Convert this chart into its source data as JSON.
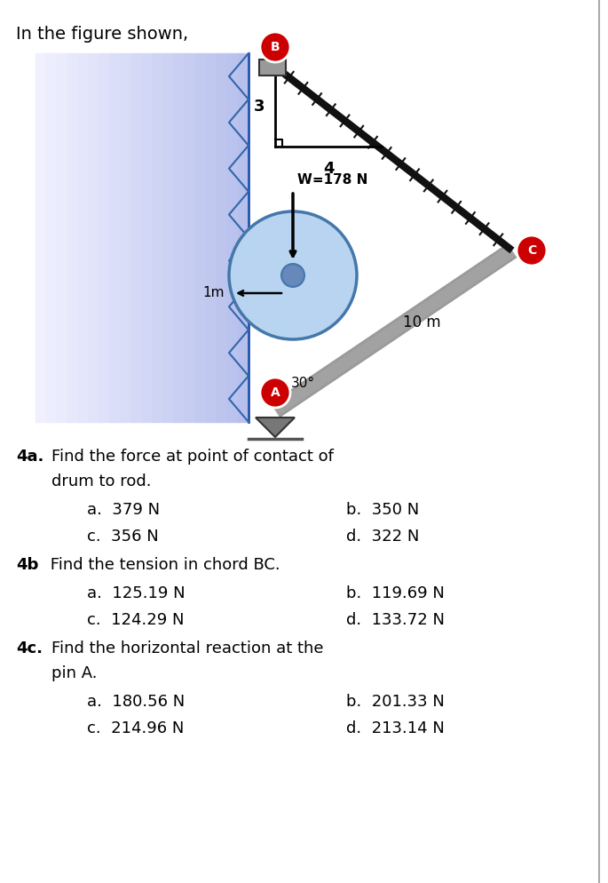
{
  "title": "In the figure shown,",
  "background_color": "#ffffff",
  "wall_color_light": "#c8dff0",
  "wall_color_dark": "#5599cc",
  "rod_color": "#888888",
  "chain_color": "#222222",
  "drum_color": "#b8d4f0",
  "drum_edge": "#4477aa",
  "point_color": "#cc0000",
  "q4a_label": "4a.",
  "q4a_text1": "Find the force at point of contact of",
  "q4a_text2": "drum to rod.",
  "q4a_a": "a.  379 N",
  "q4a_b": "b.  350 N",
  "q4a_c": "c.  356 N",
  "q4a_d": "d.  322 N",
  "q4b_label": "4b",
  "q4b_text": " Find the tension in chord BC.",
  "q4b_a": "a.  125.19 N",
  "q4b_b": "b.  119.69 N",
  "q4b_c": "c.  124.29 N",
  "q4b_d": "d.  133.72 N",
  "q4c_label": "4c.",
  "q4c_text1": "Find the horizontal reaction at the",
  "q4c_text2": "pin A.",
  "q4c_a": "a.  180.56 N",
  "q4c_b": "b.  201.33 N",
  "q4c_c": "c.  214.96 N",
  "q4c_d": "d.  213.14 N",
  "label_W": "W=178 N",
  "label_1m": "1m",
  "label_3": "3",
  "label_4": "4",
  "label_30": "30°",
  "label_10m": "10 m",
  "label_A": "A",
  "label_B": "B",
  "label_C": "C"
}
